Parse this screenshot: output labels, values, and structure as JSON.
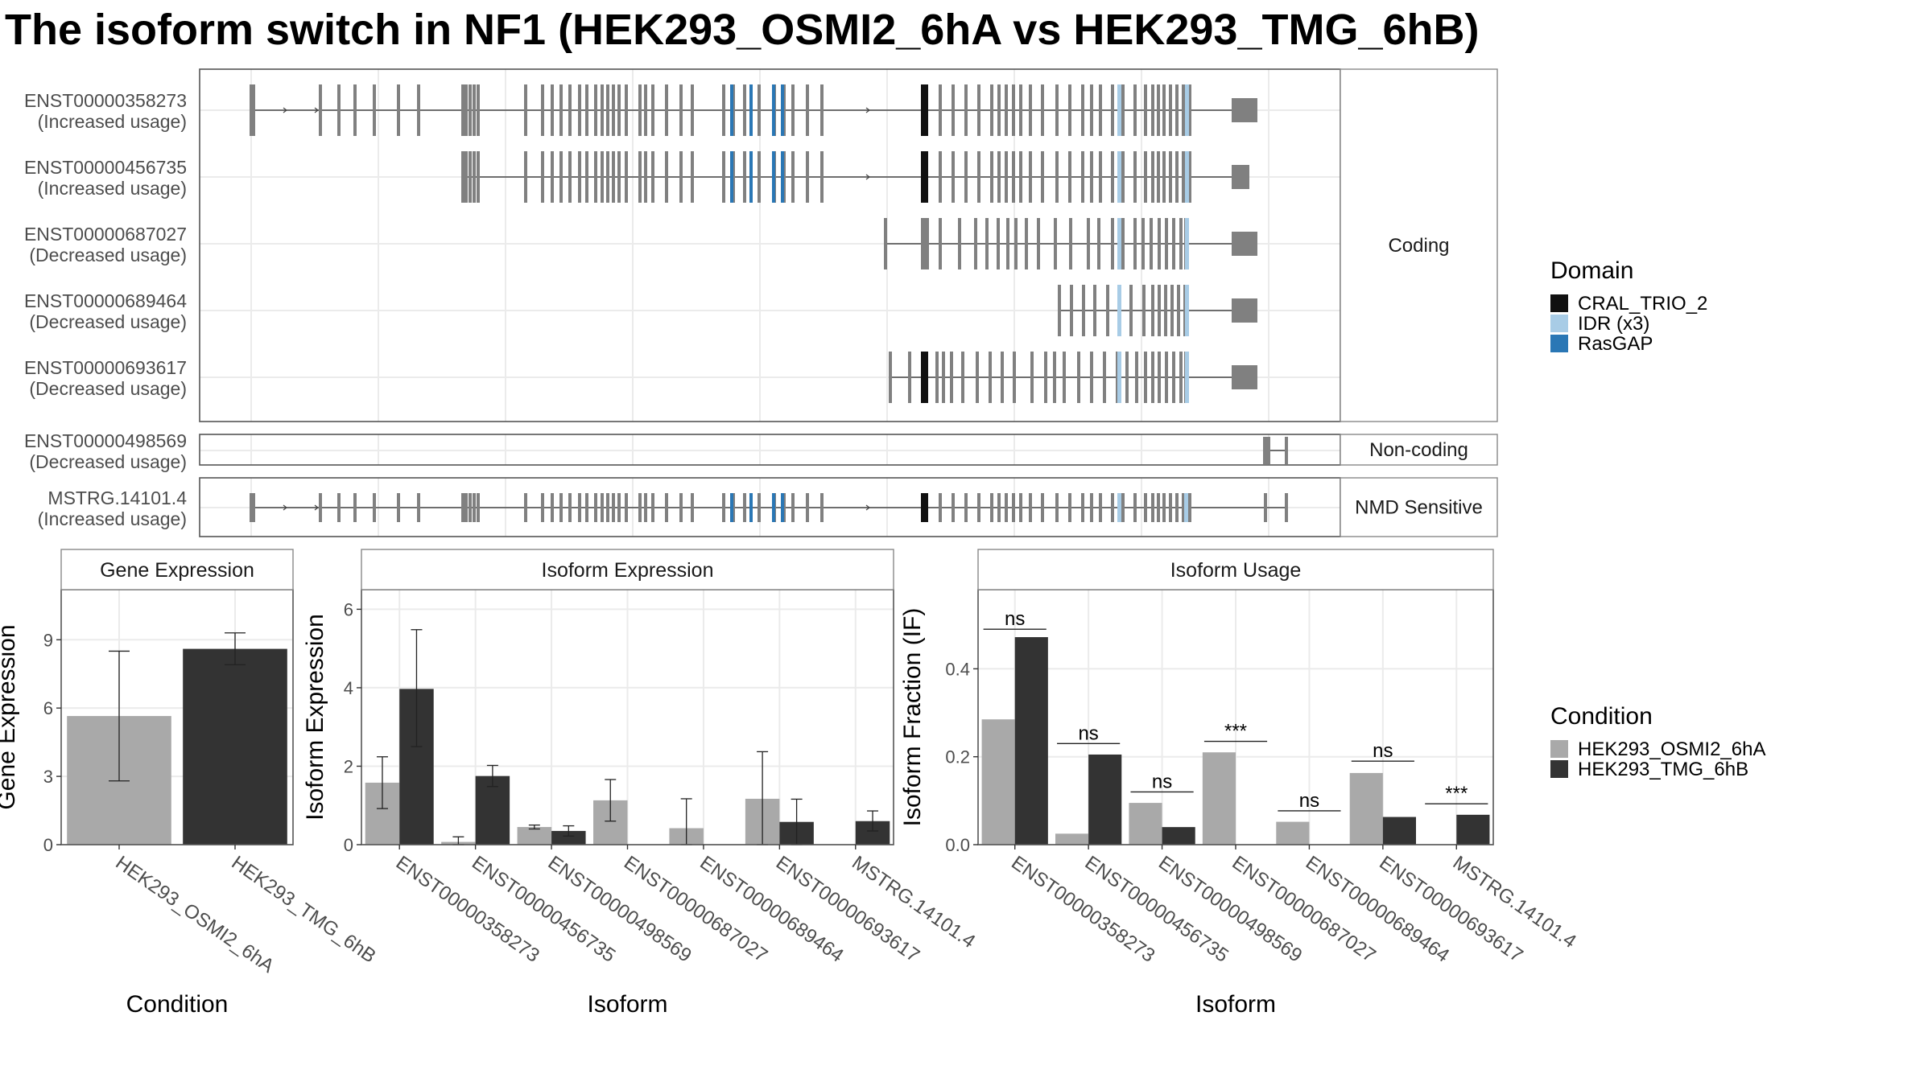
{
  "title": "The isoform switch in NF1 (HEK293_OSMI2_6hA vs HEK293_TMG_6hB)",
  "colors": {
    "exon": "#808080",
    "crral": "#111111",
    "idr": "#a8cce6",
    "rasgap": "#2a77b5",
    "cond_a": "#a9a9a9",
    "cond_b": "#333333",
    "panel_border": "#555555",
    "grid": "#ebebeb",
    "strip_bg": "#ffffff"
  },
  "transcripts": {
    "groups": [
      {
        "label": "Coding",
        "rows": [
          {
            "id": "ENST00000358273",
            "status": "(Increased usage)"
          },
          {
            "id": "ENST00000456735",
            "status": "(Increased usage)"
          },
          {
            "id": "ENST00000687027",
            "status": "(Decreased usage)"
          },
          {
            "id": "ENST00000689464",
            "status": "(Decreased usage)"
          },
          {
            "id": "ENST00000693617",
            "status": "(Decreased usage)"
          }
        ]
      },
      {
        "label": "Non-coding",
        "rows": [
          {
            "id": "ENST00000498569",
            "status": "(Decreased usage)"
          }
        ]
      },
      {
        "label": "NMD Sensitive",
        "rows": [
          {
            "id": "MSTRG.14101.4",
            "status": "(Increased usage)"
          }
        ]
      }
    ]
  },
  "domain_legend": {
    "title": "Domain",
    "items": [
      {
        "label": "CRAL_TRIO_2",
        "color_key": "crral"
      },
      {
        "label": "IDR (x3)",
        "color_key": "idr"
      },
      {
        "label": "RasGAP",
        "color_key": "rasgap"
      }
    ]
  },
  "condition_legend": {
    "title": "Condition",
    "items": [
      {
        "label": "HEK293_OSMI2_6hA",
        "color_key": "cond_a"
      },
      {
        "label": "HEK293_TMG_6hB",
        "color_key": "cond_b"
      }
    ]
  },
  "chart_data": [
    {
      "type": "bar",
      "title": "Gene Expression",
      "xlabel": "Condition",
      "ylabel": "Gene Expression",
      "ylim": [
        0,
        11.2
      ],
      "yticks": [
        0,
        3,
        6,
        9
      ],
      "categories": [
        "HEK293_OSMI2_6hA",
        "HEK293_TMG_6hB"
      ],
      "values": [
        5.65,
        8.6
      ],
      "errors": [
        [
          2.8,
          8.5
        ],
        [
          7.9,
          9.3
        ]
      ]
    },
    {
      "type": "bar",
      "title": "Isoform Expression",
      "xlabel": "Isoform",
      "ylabel": "Isoform Expression",
      "ylim": [
        0,
        6.5
      ],
      "yticks": [
        0,
        2,
        4,
        6
      ],
      "categories": [
        "ENST00000358273",
        "ENST00000456735",
        "ENST00000498569",
        "ENST00000687027",
        "ENST00000689464",
        "ENST00000693617",
        "MSTRG.14101.4"
      ],
      "series": [
        {
          "name": "HEK293_OSMI2_6hA",
          "values": [
            1.58,
            0.07,
            0.45,
            1.13,
            0.42,
            1.17,
            0.0
          ],
          "errors": [
            [
              0.92,
              2.24
            ],
            [
              0.0,
              0.2
            ],
            [
              0.4,
              0.5
            ],
            [
              0.6,
              1.66
            ],
            [
              0.0,
              1.17
            ],
            [
              0.0,
              2.37
            ],
            [
              0.0,
              0.0
            ]
          ]
        },
        {
          "name": "HEK293_TMG_6hB",
          "values": [
            3.97,
            1.75,
            0.35,
            0.0,
            0.0,
            0.58,
            0.6
          ],
          "errors": [
            [
              2.5,
              5.48
            ],
            [
              1.48,
              2.02
            ],
            [
              0.22,
              0.48
            ],
            [
              0.0,
              0.0
            ],
            [
              0.0,
              0.0
            ],
            [
              0.0,
              1.16
            ],
            [
              0.35,
              0.86
            ]
          ]
        }
      ]
    },
    {
      "type": "bar",
      "title": "Isoform Usage",
      "xlabel": "Isoform",
      "ylabel": "Isoform Fraction (IF)",
      "ylim": [
        0,
        0.58
      ],
      "yticks": [
        0.0,
        0.2,
        0.4
      ],
      "categories": [
        "ENST00000358273",
        "ENST00000456735",
        "ENST00000498569",
        "ENST00000687027",
        "ENST00000689464",
        "ENST00000693617",
        "MSTRG.14101.4"
      ],
      "series": [
        {
          "name": "HEK293_OSMI2_6hA",
          "values": [
            0.285,
            0.025,
            0.095,
            0.21,
            0.052,
            0.163,
            0.0
          ]
        },
        {
          "name": "HEK293_TMG_6hB",
          "values": [
            0.472,
            0.205,
            0.04,
            0.0,
            0.0,
            0.063,
            0.068
          ]
        }
      ],
      "significance": [
        {
          "label": "ns",
          "y": 0.49
        },
        {
          "label": "ns",
          "y": 0.23
        },
        {
          "label": "ns",
          "y": 0.12
        },
        {
          "label": "***",
          "y": 0.235
        },
        {
          "label": "ns",
          "y": 0.077
        },
        {
          "label": "ns",
          "y": 0.19
        },
        {
          "label": "***",
          "y": 0.093
        }
      ]
    }
  ]
}
